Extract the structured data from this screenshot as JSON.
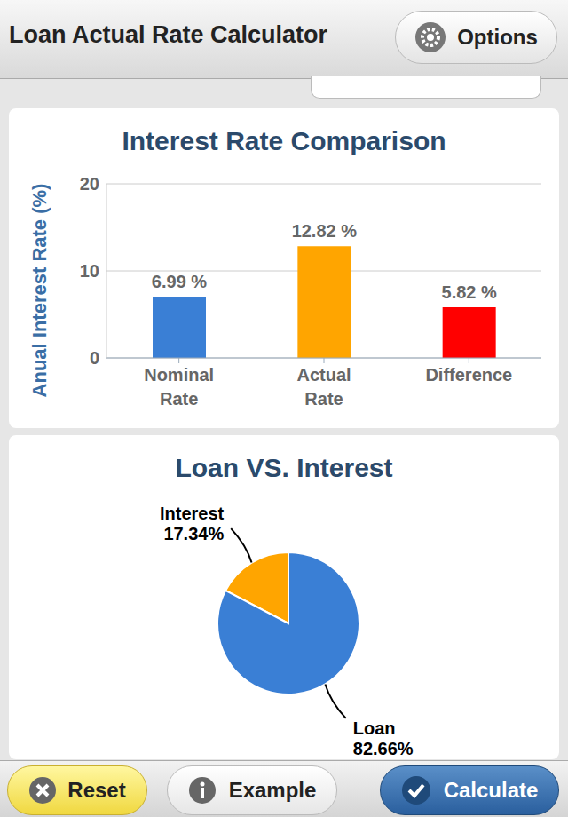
{
  "app": {
    "title": "Loan Actual Rate Calculator",
    "options": "Options",
    "buttons": [
      "Reset",
      "Example",
      "Calculate"
    ]
  },
  "chart_data": [
    {
      "type": "bar",
      "title": "Interest Rate Comparison",
      "y_label": "Anual Interest Rate (%)",
      "categories": [
        "Nominal Rate",
        "Actual Rate",
        "Difference"
      ],
      "values": [
        6.99,
        12.82,
        5.82
      ],
      "value_labels": [
        "6.99 %",
        "12.82 %",
        "5.82 %"
      ],
      "colors": [
        "#3a7fd5",
        "#ffa500",
        "#ff0000"
      ],
      "ylim": [
        0,
        20
      ],
      "yticks": [
        0,
        10,
        20
      ],
      "grid": true,
      "data_labels": true
    },
    {
      "type": "pie",
      "title": "Loan VS. Interest",
      "categories": [
        "Interest",
        "Loan"
      ],
      "values": [
        17.34,
        82.66
      ],
      "value_labels": [
        "17.34%",
        "82.66%"
      ],
      "colors": [
        "#ffa500",
        "#3a7fd5"
      ]
    }
  ]
}
